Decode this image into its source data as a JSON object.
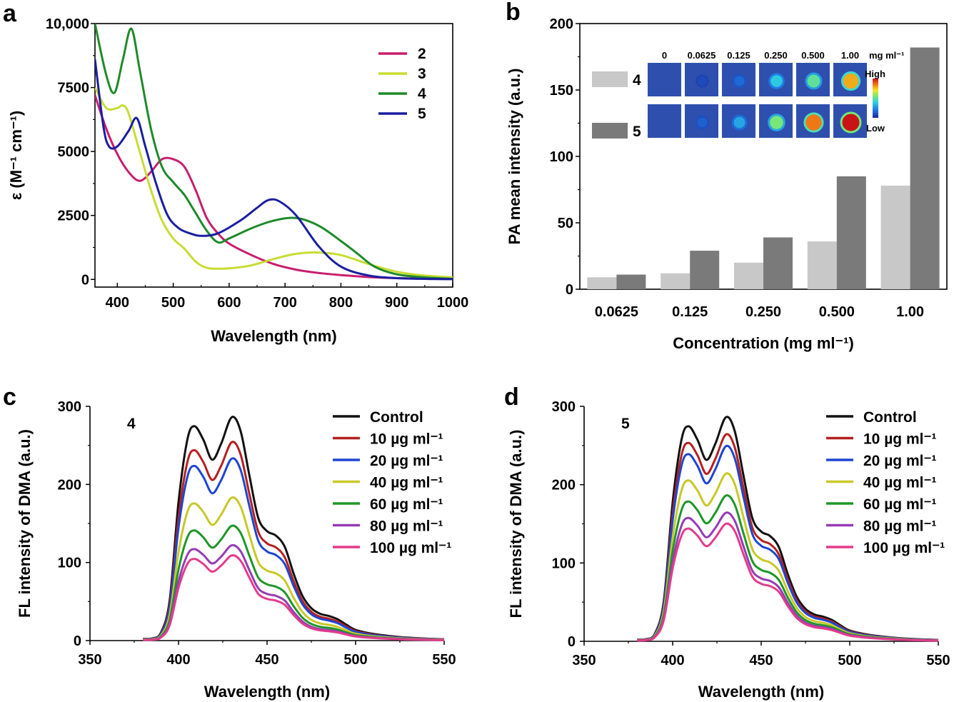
{
  "panels": [
    {
      "id": "a",
      "label": "a"
    },
    {
      "id": "b",
      "label": "b"
    },
    {
      "id": "c",
      "label": "c"
    },
    {
      "id": "d",
      "label": "d"
    }
  ],
  "chart_data": [
    {
      "panel": "a",
      "type": "line",
      "title": "",
      "xlabel": "Wavelength (nm)",
      "ylabel": "ε (M⁻¹ cm⁻¹)",
      "xlim": [
        360,
        1000
      ],
      "ylim": [
        -300,
        10000
      ],
      "xticks": [
        400,
        500,
        600,
        700,
        800,
        900,
        1000
      ],
      "yticks": [
        0,
        2500,
        5000,
        7500,
        10000
      ],
      "ytick_labels": [
        "0",
        "2500",
        "5000",
        "7500",
        "10,000"
      ],
      "legend_position": "top-right",
      "series": [
        {
          "name": "2",
          "color": "#c81e6e",
          "x": [
            360,
            380,
            400,
            420,
            440,
            460,
            480,
            500,
            520,
            540,
            560,
            580,
            600,
            640,
            680,
            720,
            760,
            800,
            850,
            900,
            950,
            1000
          ],
          "y": [
            7200,
            5900,
            4900,
            4200,
            3850,
            4200,
            4700,
            4700,
            4400,
            3500,
            2400,
            1800,
            1400,
            950,
            600,
            380,
            250,
            170,
            90,
            50,
            30,
            20
          ]
        },
        {
          "name": "3",
          "color": "#c8dc32",
          "x": [
            360,
            380,
            400,
            410,
            420,
            440,
            460,
            480,
            500,
            520,
            540,
            560,
            580,
            600,
            640,
            680,
            720,
            760,
            800,
            850,
            900,
            950,
            1000
          ],
          "y": [
            7500,
            6700,
            6700,
            6800,
            6500,
            5000,
            3500,
            2300,
            1600,
            1200,
            700,
            450,
            420,
            430,
            550,
            800,
            1000,
            1050,
            950,
            600,
            300,
            150,
            80
          ]
        },
        {
          "name": "4",
          "color": "#1e8a2a",
          "x": [
            360,
            380,
            395,
            410,
            425,
            440,
            460,
            480,
            500,
            520,
            540,
            560,
            580,
            600,
            640,
            680,
            720,
            760,
            800,
            830,
            860,
            900,
            950,
            1000
          ],
          "y": [
            10000,
            8000,
            7300,
            8600,
            9800,
            8200,
            5900,
            4400,
            3800,
            3300,
            2600,
            1900,
            1450,
            1600,
            2000,
            2300,
            2400,
            2100,
            1500,
            1000,
            500,
            200,
            80,
            20
          ]
        },
        {
          "name": "5",
          "color": "#1a1ea0",
          "x": [
            360,
            375,
            385,
            400,
            420,
            435,
            450,
            470,
            490,
            510,
            530,
            550,
            580,
            620,
            650,
            670,
            690,
            720,
            760,
            800,
            850,
            900,
            950,
            1000
          ],
          "y": [
            8600,
            6000,
            5200,
            5200,
            5800,
            6300,
            5200,
            3700,
            2500,
            2000,
            1800,
            1700,
            1800,
            2300,
            2800,
            3100,
            3050,
            2500,
            1300,
            500,
            150,
            50,
            20,
            10
          ]
        }
      ]
    },
    {
      "panel": "b",
      "type": "bar",
      "title": "",
      "xlabel": "Concentration (mg ml⁻¹)",
      "ylabel": "PA mean intensity (a.u.)",
      "ylim": [
        0,
        200
      ],
      "yticks": [
        0,
        50,
        100,
        150,
        200
      ],
      "categories": [
        "0.0625",
        "0.125",
        "0.250",
        "0.500",
        "1.00"
      ],
      "legend_position": "top-left",
      "series": [
        {
          "name": "4",
          "color": "#c8c8c8",
          "values": [
            9,
            12,
            20,
            36,
            78
          ]
        },
        {
          "name": "5",
          "color": "#7a7a7a",
          "values": [
            11,
            29,
            39,
            85,
            182
          ]
        }
      ],
      "inset": {
        "concentrations": [
          "0",
          "0.0625",
          "0.125",
          "0.250",
          "0.500",
          "1.00"
        ],
        "unit": "mg ml⁻¹",
        "scale_high": "High",
        "scale_low": "Low",
        "rows": [
          {
            "name": "4",
            "levels": [
              0,
              0.05,
              0.15,
              0.38,
              0.5,
              0.78
            ]
          },
          {
            "name": "5",
            "levels": [
              0,
              0.12,
              0.3,
              0.55,
              0.85,
              1.0
            ]
          }
        ]
      }
    },
    {
      "panel": "c",
      "type": "line",
      "annotation": "4",
      "xlabel": "Wavelength (nm)",
      "ylabel": "FL intensity of DMA (a.u.)",
      "xlim": [
        350,
        550
      ],
      "ylim": [
        0,
        300
      ],
      "xticks": [
        350,
        400,
        450,
        500,
        550
      ],
      "yticks": [
        0,
        100,
        200,
        300
      ],
      "legend_position": "top-right",
      "profile_x": [
        380,
        385,
        390,
        395,
        400,
        405,
        409,
        414,
        419,
        424,
        430,
        435,
        440,
        445,
        450,
        455,
        460,
        465,
        470,
        475,
        480,
        485,
        490,
        495,
        500,
        510,
        520,
        530,
        540,
        550
      ],
      "profile_shape": [
        0.008,
        0.01,
        0.035,
        0.18,
        0.62,
        0.9,
        0.96,
        0.9,
        0.81,
        0.88,
        1.0,
        0.94,
        0.74,
        0.55,
        0.49,
        0.47,
        0.42,
        0.3,
        0.2,
        0.145,
        0.12,
        0.11,
        0.095,
        0.07,
        0.048,
        0.03,
        0.02,
        0.013,
        0.009,
        0.006
      ],
      "series": [
        {
          "name": "Control",
          "color": "#111111",
          "peak": 286
        },
        {
          "name": "10 µg ml⁻¹",
          "color": "#b52020",
          "peak": 254
        },
        {
          "name": "20 µg ml⁻¹",
          "color": "#1e46d2",
          "peak": 233
        },
        {
          "name": "40 µg ml⁻¹",
          "color": "#c8c828",
          "peak": 183
        },
        {
          "name": "60 µg ml⁻¹",
          "color": "#1e9628",
          "peak": 147
        },
        {
          "name": "80 µg ml⁻¹",
          "color": "#963cb4",
          "peak": 122
        },
        {
          "name": "100 µg ml⁻¹",
          "color": "#e13c8c",
          "peak": 109
        }
      ]
    },
    {
      "panel": "d",
      "type": "line",
      "annotation": "5",
      "xlabel": "Wavelength (nm)",
      "ylabel": "FL intensity of DMA (a.u.)",
      "xlim": [
        350,
        550
      ],
      "ylim": [
        0,
        300
      ],
      "xticks": [
        350,
        400,
        450,
        500,
        550
      ],
      "yticks": [
        0,
        100,
        200,
        300
      ],
      "legend_position": "top-right",
      "profile_x": [
        380,
        385,
        390,
        395,
        400,
        405,
        409,
        414,
        419,
        424,
        430,
        435,
        440,
        445,
        450,
        455,
        460,
        465,
        470,
        475,
        480,
        485,
        490,
        495,
        500,
        510,
        520,
        530,
        540,
        550
      ],
      "profile_shape": [
        0.008,
        0.01,
        0.035,
        0.18,
        0.62,
        0.9,
        0.96,
        0.9,
        0.81,
        0.88,
        1.0,
        0.94,
        0.74,
        0.55,
        0.49,
        0.47,
        0.42,
        0.3,
        0.2,
        0.145,
        0.12,
        0.11,
        0.095,
        0.07,
        0.048,
        0.03,
        0.02,
        0.013,
        0.009,
        0.006
      ],
      "series": [
        {
          "name": "Control",
          "color": "#111111",
          "peak": 286
        },
        {
          "name": "10 µg ml⁻¹",
          "color": "#b52020",
          "peak": 264
        },
        {
          "name": "20 µg ml⁻¹",
          "color": "#1e46d2",
          "peak": 249
        },
        {
          "name": "40 µg ml⁻¹",
          "color": "#c8c828",
          "peak": 214
        },
        {
          "name": "60 µg ml⁻¹",
          "color": "#1e9628",
          "peak": 186
        },
        {
          "name": "80 µg ml⁻¹",
          "color": "#963cb4",
          "peak": 164
        },
        {
          "name": "100 µg ml⁻¹",
          "color": "#e13c8c",
          "peak": 150
        }
      ]
    }
  ]
}
